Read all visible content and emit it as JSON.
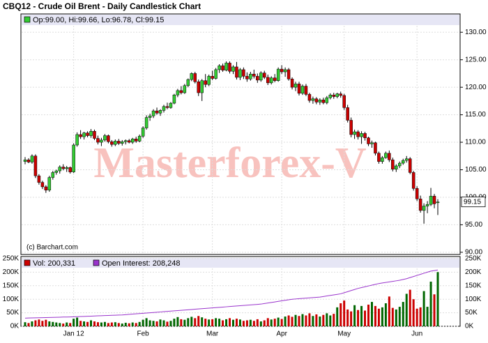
{
  "chart_data": [
    {
      "type": "candlestick",
      "title": "CBQ12 - Crude Oil Brent - Daily Candlestick Chart",
      "legend_text": "Op:99.00, Hi:99.66, Lo:96.78, Cl:99.15",
      "last_label": "99.15",
      "watermark": "Masterforex-V",
      "credit": "(c) Barchart.com",
      "up_color": "#33cc33",
      "down_color": "#cc0000",
      "grid": true,
      "ylim": [
        89.6,
        133.2
      ],
      "yticks": [
        {
          "value": 90,
          "label": "90.00"
        },
        {
          "value": 95,
          "label": "95.00"
        },
        {
          "value": 100,
          "label": "100.00"
        },
        {
          "value": 105,
          "label": "105.00"
        },
        {
          "value": 110,
          "label": "110.00"
        },
        {
          "value": 115,
          "label": "115.00"
        },
        {
          "value": 120,
          "label": "120.00"
        },
        {
          "value": 125,
          "label": "125.00"
        },
        {
          "value": 130,
          "label": "130.00"
        }
      ],
      "ohlc": [
        [
          106.5,
          107.3,
          106.0,
          106.8
        ],
        [
          106.8,
          107.1,
          106.2,
          106.4
        ],
        [
          106.4,
          107.8,
          106.1,
          107.5
        ],
        [
          107.5,
          107.8,
          103.5,
          103.9
        ],
        [
          103.9,
          104.2,
          102.3,
          102.7
        ],
        [
          102.7,
          103.0,
          101.5,
          101.9
        ],
        [
          101.9,
          102.2,
          100.8,
          101.3
        ],
        [
          101.3,
          103.9,
          101.0,
          103.6
        ],
        [
          103.6,
          104.8,
          103.2,
          104.5
        ],
        [
          104.5,
          105.0,
          104.1,
          104.8
        ],
        [
          104.8,
          105.8,
          104.3,
          105.5
        ],
        [
          105.5,
          106.0,
          104.9,
          105.2
        ],
        [
          105.2,
          105.7,
          104.6,
          105.4
        ],
        [
          105.4,
          105.6,
          104.3,
          104.6
        ],
        [
          104.6,
          109.8,
          104.4,
          109.5
        ],
        [
          109.5,
          111.8,
          109.2,
          111.4
        ],
        [
          111.4,
          112.2,
          110.6,
          111.0
        ],
        [
          111.0,
          111.9,
          110.5,
          111.7
        ],
        [
          111.7,
          112.0,
          110.9,
          111.2
        ],
        [
          111.2,
          112.4,
          110.8,
          112.0
        ],
        [
          112.0,
          112.3,
          110.4,
          110.7
        ],
        [
          110.7,
          111.2,
          109.6,
          110.0
        ],
        [
          110.0,
          110.8,
          109.3,
          110.4
        ],
        [
          110.4,
          111.5,
          110.1,
          111.2
        ],
        [
          111.2,
          111.4,
          109.8,
          110.1
        ],
        [
          110.1,
          110.4,
          109.2,
          109.6
        ],
        [
          109.6,
          110.5,
          109.3,
          110.2
        ],
        [
          110.2,
          110.6,
          109.5,
          109.8
        ],
        [
          109.8,
          110.4,
          109.4,
          110.1
        ],
        [
          110.1,
          110.5,
          109.6,
          110.3
        ],
        [
          110.3,
          110.6,
          109.8,
          110.0
        ],
        [
          110.0,
          110.8,
          109.7,
          110.6
        ],
        [
          110.6,
          111.0,
          109.9,
          110.2
        ],
        [
          110.2,
          111.4,
          110.0,
          111.1
        ],
        [
          111.1,
          112.9,
          110.8,
          112.6
        ],
        [
          112.6,
          114.9,
          112.3,
          114.5
        ],
        [
          114.5,
          115.2,
          113.9,
          114.8
        ],
        [
          114.8,
          116.0,
          114.4,
          115.7
        ],
        [
          115.7,
          116.3,
          115.0,
          115.3
        ],
        [
          115.3,
          116.0,
          114.8,
          115.8
        ],
        [
          115.8,
          116.8,
          115.4,
          116.5
        ],
        [
          116.5,
          117.2,
          116.0,
          116.3
        ],
        [
          116.3,
          117.3,
          116.1,
          117.1
        ],
        [
          117.1,
          118.8,
          116.9,
          118.6
        ],
        [
          118.6,
          119.7,
          118.2,
          119.4
        ],
        [
          119.4,
          120.2,
          118.7,
          119.0
        ],
        [
          119.0,
          120.6,
          118.8,
          120.3
        ],
        [
          120.3,
          121.6,
          120.0,
          121.4
        ],
        [
          121.4,
          122.7,
          121.1,
          122.5
        ],
        [
          122.5,
          122.8,
          120.7,
          121.0
        ],
        [
          121.0,
          121.4,
          118.4,
          119.0
        ],
        [
          119.0,
          121.5,
          117.5,
          121.2
        ],
        [
          121.2,
          122.4,
          120.0,
          120.5
        ],
        [
          120.5,
          122.3,
          120.2,
          122.0
        ],
        [
          122.0,
          123.0,
          121.3,
          121.6
        ],
        [
          121.6,
          123.5,
          121.4,
          123.2
        ],
        [
          123.2,
          124.2,
          122.6,
          123.9
        ],
        [
          123.9,
          124.3,
          122.8,
          123.1
        ],
        [
          123.1,
          124.7,
          122.9,
          124.4
        ],
        [
          124.4,
          124.7,
          122.5,
          122.9
        ],
        [
          122.9,
          124.0,
          122.4,
          123.7
        ],
        [
          123.7,
          124.6,
          121.4,
          121.8
        ],
        [
          121.8,
          123.5,
          121.3,
          123.2
        ],
        [
          123.2,
          123.6,
          121.5,
          122.0
        ],
        [
          122.0,
          122.7,
          121.0,
          121.5
        ],
        [
          121.5,
          122.8,
          121.2,
          122.4
        ],
        [
          122.4,
          123.2,
          121.6,
          122.0
        ],
        [
          122.0,
          122.5,
          120.8,
          121.3
        ],
        [
          121.3,
          122.9,
          121.0,
          122.6
        ],
        [
          122.6,
          123.0,
          121.5,
          121.8
        ],
        [
          121.8,
          122.3,
          120.4,
          120.8
        ],
        [
          120.8,
          122.0,
          120.5,
          121.7
        ],
        [
          121.7,
          122.4,
          120.9,
          121.2
        ],
        [
          121.2,
          123.6,
          121.0,
          123.3
        ],
        [
          123.3,
          124.0,
          122.4,
          122.8
        ],
        [
          122.8,
          123.6,
          121.9,
          123.2
        ],
        [
          123.2,
          123.5,
          121.2,
          121.5
        ],
        [
          121.5,
          121.8,
          119.6,
          120.0
        ],
        [
          120.0,
          121.0,
          119.3,
          120.6
        ],
        [
          120.6,
          121.0,
          118.5,
          118.9
        ],
        [
          118.9,
          120.5,
          118.6,
          120.2
        ],
        [
          120.2,
          120.6,
          118.4,
          118.7
        ],
        [
          118.7,
          119.0,
          117.2,
          117.6
        ],
        [
          117.6,
          118.3,
          117.0,
          117.9
        ],
        [
          117.9,
          118.2,
          116.9,
          117.3
        ],
        [
          117.3,
          118.0,
          116.8,
          117.7
        ],
        [
          117.7,
          118.1,
          116.9,
          117.2
        ],
        [
          117.2,
          118.4,
          116.9,
          118.1
        ],
        [
          118.1,
          118.9,
          117.8,
          118.6
        ],
        [
          118.6,
          119.0,
          117.9,
          118.3
        ],
        [
          118.3,
          119.0,
          118.0,
          118.8
        ],
        [
          118.8,
          119.2,
          118.1,
          118.5
        ],
        [
          118.5,
          118.8,
          115.9,
          116.3
        ],
        [
          116.3,
          116.8,
          113.6,
          114.0
        ],
        [
          114.0,
          114.5,
          110.9,
          111.4
        ],
        [
          111.4,
          112.3,
          110.6,
          111.9
        ],
        [
          111.9,
          112.2,
          110.5,
          111.0
        ],
        [
          111.0,
          112.0,
          109.7,
          111.6
        ],
        [
          111.6,
          111.9,
          110.3,
          110.8
        ],
        [
          110.8,
          111.0,
          109.3,
          109.7
        ],
        [
          109.7,
          110.3,
          109.0,
          109.9
        ],
        [
          109.9,
          110.1,
          107.6,
          108.0
        ],
        [
          108.0,
          108.3,
          106.1,
          106.5
        ],
        [
          106.5,
          107.5,
          106.1,
          107.2
        ],
        [
          107.2,
          108.3,
          107.0,
          108.0
        ],
        [
          108.0,
          108.5,
          106.4,
          106.8
        ],
        [
          106.8,
          107.2,
          104.7,
          105.1
        ],
        [
          105.1,
          106.0,
          104.6,
          105.7
        ],
        [
          105.7,
          106.5,
          105.3,
          106.2
        ],
        [
          106.2,
          107.0,
          105.9,
          106.7
        ],
        [
          106.7,
          107.5,
          106.3,
          107.0
        ],
        [
          107.0,
          107.3,
          104.2,
          104.5
        ],
        [
          104.5,
          104.8,
          101.2,
          101.6
        ],
        [
          101.6,
          102.0,
          99.3,
          99.7
        ],
        [
          99.7,
          100.3,
          97.2,
          97.6
        ],
        [
          97.6,
          98.9,
          95.2,
          98.4
        ],
        [
          98.4,
          99.3,
          97.1,
          98.7
        ],
        [
          98.7,
          101.7,
          98.4,
          100.2
        ],
        [
          100.2,
          100.6,
          98.0,
          98.8
        ],
        [
          99.0,
          99.66,
          96.78,
          99.15
        ]
      ]
    },
    {
      "type": "bar",
      "categories": [
        null,
        null,
        null,
        null,
        null,
        null,
        null,
        null,
        null,
        null,
        null,
        null,
        null,
        null,
        "Jan 12",
        null,
        null,
        null,
        null,
        null,
        null,
        null,
        null,
        null,
        null,
        null,
        null,
        null,
        null,
        null,
        null,
        null,
        null,
        null,
        "Feb",
        null,
        null,
        null,
        null,
        null,
        null,
        null,
        null,
        null,
        null,
        null,
        null,
        null,
        null,
        null,
        null,
        null,
        null,
        null,
        "Mar",
        null,
        null,
        null,
        null,
        null,
        null,
        null,
        null,
        null,
        null,
        null,
        null,
        null,
        null,
        null,
        null,
        null,
        null,
        null,
        "Apr",
        null,
        null,
        null,
        null,
        null,
        null,
        null,
        null,
        null,
        null,
        null,
        null,
        null,
        null,
        null,
        null,
        null,
        "May",
        null,
        null,
        null,
        null,
        null,
        null,
        null,
        null,
        null,
        null,
        null,
        null,
        null,
        null,
        null,
        null,
        null,
        null,
        null,
        null,
        "Jun",
        null,
        null,
        null,
        null,
        null,
        null
      ],
      "ylim": [
        0,
        250000
      ],
      "yticks": [
        {
          "value": 0,
          "label": "0K"
        },
        {
          "value": 50000,
          "label": "50K"
        },
        {
          "value": 100000,
          "label": "100K"
        },
        {
          "value": 150000,
          "label": "150K"
        },
        {
          "value": 200000,
          "label": "200K"
        },
        {
          "value": 250000,
          "label": "250K"
        }
      ],
      "series": [
        {
          "name": "Vol: 200,331",
          "color": "#cc0000",
          "values": [
            15000,
            12000,
            18000,
            22000,
            25000,
            20000,
            24000,
            18000,
            16000,
            14000,
            12000,
            10000,
            14000,
            12000,
            28000,
            32000,
            20000,
            18000,
            16000,
            22000,
            18000,
            15000,
            14000,
            16000,
            12000,
            14000,
            15000,
            12000,
            10000,
            13000,
            11000,
            14000,
            12000,
            16000,
            24000,
            30000,
            22000,
            20000,
            18000,
            25000,
            22000,
            17000,
            20000,
            28000,
            34000,
            26000,
            24000,
            30000,
            35000,
            30000,
            38000,
            33000,
            28000,
            25000,
            26000,
            30000,
            28000,
            22000,
            26000,
            30000,
            24000,
            28000,
            25000,
            20000,
            22000,
            24000,
            20000,
            26000,
            18000,
            22000,
            30000,
            25000,
            28000,
            32000,
            27000,
            36000,
            40000,
            35000,
            42000,
            38000,
            45000,
            40000,
            48000,
            38000,
            44000,
            36000,
            42000,
            48000,
            40000,
            46000,
            70000,
            85000,
            95000,
            62000,
            55000,
            78000,
            60000,
            75000,
            58000,
            80000,
            90000,
            75000,
            65000,
            70000,
            85000,
            110000,
            68000,
            62000,
            72000,
            90000,
            120000,
            135000,
            100000,
            65000,
            70000,
            130000,
            72000,
            165000,
            118000,
            200331
          ]
        },
        {
          "name": "Open Interest: 208,248",
          "color": "#9933cc",
          "values": [
            30000,
            30500,
            31000,
            31200,
            31500,
            32000,
            32200,
            32500,
            33000,
            33200,
            33500,
            34000,
            34200,
            34500,
            35000,
            35500,
            36000,
            36500,
            37000,
            37500,
            38000,
            38500,
            39000,
            39500,
            40000,
            40500,
            41000,
            41500,
            42000,
            43000,
            44000,
            45000,
            46000,
            47000,
            48000,
            49000,
            50000,
            51000,
            52000,
            53000,
            54000,
            55000,
            56000,
            57000,
            58000,
            59000,
            60000,
            61000,
            62000,
            63000,
            64000,
            65000,
            66000,
            67000,
            68000,
            69000,
            70000,
            71000,
            72000,
            73000,
            74000,
            75000,
            76000,
            77000,
            78000,
            79000,
            80000,
            81000,
            82000,
            84000,
            86000,
            88000,
            90000,
            92000,
            94000,
            96000,
            98000,
            100000,
            101000,
            102000,
            103000,
            104000,
            105000,
            106000,
            107000,
            108000,
            110000,
            112000,
            114000,
            116000,
            118000,
            120000,
            124000,
            128000,
            132000,
            136000,
            140000,
            143000,
            146000,
            149000,
            152000,
            155000,
            158000,
            160000,
            162000,
            164000,
            166000,
            168000,
            170000,
            173000,
            176000,
            180000,
            184000,
            188000,
            192000,
            196000,
            200000,
            204000,
            206000,
            208248
          ]
        }
      ]
    }
  ]
}
